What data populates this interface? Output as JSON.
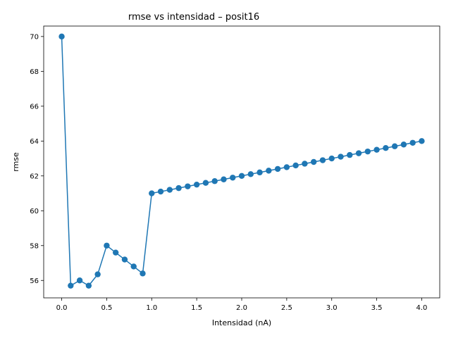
{
  "chart_data": {
    "type": "line",
    "title": "rmse vs intensidad – posit16",
    "xlabel": "Intensidad (nA)",
    "ylabel": "rmse",
    "xlim": [
      -0.2,
      4.2
    ],
    "ylim": [
      55.0,
      70.6
    ],
    "x_ticks": [
      "0.0",
      "0.5",
      "1.0",
      "1.5",
      "2.0",
      "2.5",
      "3.0",
      "3.5",
      "4.0"
    ],
    "x_tick_values": [
      0.0,
      0.5,
      1.0,
      1.5,
      2.0,
      2.5,
      3.0,
      3.5,
      4.0
    ],
    "y_ticks": [
      "56",
      "58",
      "60",
      "62",
      "64",
      "66",
      "68",
      "70"
    ],
    "y_tick_values": [
      56,
      58,
      60,
      62,
      64,
      66,
      68,
      70
    ],
    "grid": false,
    "legend": "none",
    "color": "#1f77b4",
    "series": [
      {
        "x": [
          0.0,
          0.1,
          0.2,
          0.3,
          0.4,
          0.5,
          0.6,
          0.7,
          0.8,
          0.9,
          1.0,
          1.1,
          1.2,
          1.3,
          1.4,
          1.5,
          1.6,
          1.7,
          1.8,
          1.9,
          2.0,
          2.1,
          2.2,
          2.3,
          2.4,
          2.5,
          2.6,
          2.7,
          2.8,
          2.9,
          3.0,
          3.1,
          3.2,
          3.3,
          3.4,
          3.5,
          3.6,
          3.7,
          3.8,
          3.9,
          4.0
        ],
        "y": [
          70.0,
          55.7,
          56.0,
          55.7,
          56.35,
          58.0,
          57.6,
          57.2,
          56.8,
          56.4,
          61.0,
          61.1,
          61.2,
          61.3,
          61.4,
          61.5,
          61.6,
          61.7,
          61.8,
          61.9,
          62.0,
          62.1,
          62.2,
          62.3,
          62.4,
          62.5,
          62.6,
          62.7,
          62.8,
          62.9,
          63.0,
          63.1,
          63.2,
          63.3,
          63.4,
          63.5,
          63.6,
          63.7,
          63.8,
          63.9,
          64.0
        ]
      }
    ]
  }
}
